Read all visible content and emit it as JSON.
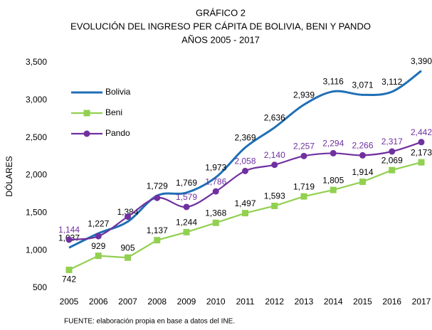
{
  "chart_data": {
    "type": "line",
    "title": [
      "GRÁFICO 2",
      "EVOLUCIÓN DEL INGRESO PER CÁPITA DE BOLIVIA, BENI Y PANDO",
      "AÑOS 2005 - 2017"
    ],
    "y_label": "DÓLARES",
    "source": "FUENTE: elaboración propia en base a datos del INE.",
    "categories": [
      "2005",
      "2006",
      "2007",
      "2008",
      "2009",
      "2010",
      "2011",
      "2012",
      "2013",
      "2014",
      "2015",
      "2016",
      "2017"
    ],
    "ylim": [
      500,
      3500
    ],
    "yticks": [
      {
        "value": 500,
        "label": "500"
      },
      {
        "value": 1000,
        "label": "1,000"
      },
      {
        "value": 1500,
        "label": "1,500"
      },
      {
        "value": 2000,
        "label": "2,000"
      },
      {
        "value": 2500,
        "label": "2,500"
      },
      {
        "value": 3000,
        "label": "3,000"
      },
      {
        "value": 3500,
        "label": "3,500"
      }
    ],
    "legend": "upper left",
    "series": [
      {
        "name": "Bolivia",
        "color": "#1f6fb5",
        "smooth": true,
        "marker": "none",
        "label_color": "#000000",
        "values": [
          1037,
          1227,
          1384,
          1729,
          1769,
          1973,
          2369,
          2636,
          2939,
          3116,
          3071,
          3112,
          3390
        ],
        "value_labels": [
          "1,037",
          "1,227",
          "1,384",
          "1,729",
          "1,769",
          "1,973",
          "2,369",
          "2,636",
          "2,939",
          "3,116",
          "3,071",
          "3,112",
          "3,390"
        ]
      },
      {
        "name": "Beni",
        "color": "#92d050",
        "smooth": false,
        "marker": "square",
        "label_color": "#000000",
        "values": [
          742,
          929,
          905,
          1137,
          1244,
          1368,
          1497,
          1593,
          1719,
          1805,
          1914,
          2069,
          2173
        ],
        "value_labels": [
          "742",
          "929",
          "905",
          "1,137",
          "1,244",
          "1,368",
          "1,497",
          "1,593",
          "1,719",
          "1,805",
          "1,914",
          "2,069",
          "2,173"
        ]
      },
      {
        "name": "Pando",
        "color": "#7030a0",
        "smooth": true,
        "marker": "circle",
        "label_color": "#7030a0",
        "values": [
          1144,
          1190,
          1450,
          1700,
          1579,
          1786,
          2058,
          2140,
          2257,
          2294,
          2266,
          2317,
          2442
        ],
        "value_labels": [
          "1,144",
          null,
          null,
          null,
          "1,579",
          "1,786",
          "2,058",
          "2,140",
          "2,257",
          "2,294",
          "2,266",
          "2,317",
          "2,442"
        ]
      }
    ]
  }
}
